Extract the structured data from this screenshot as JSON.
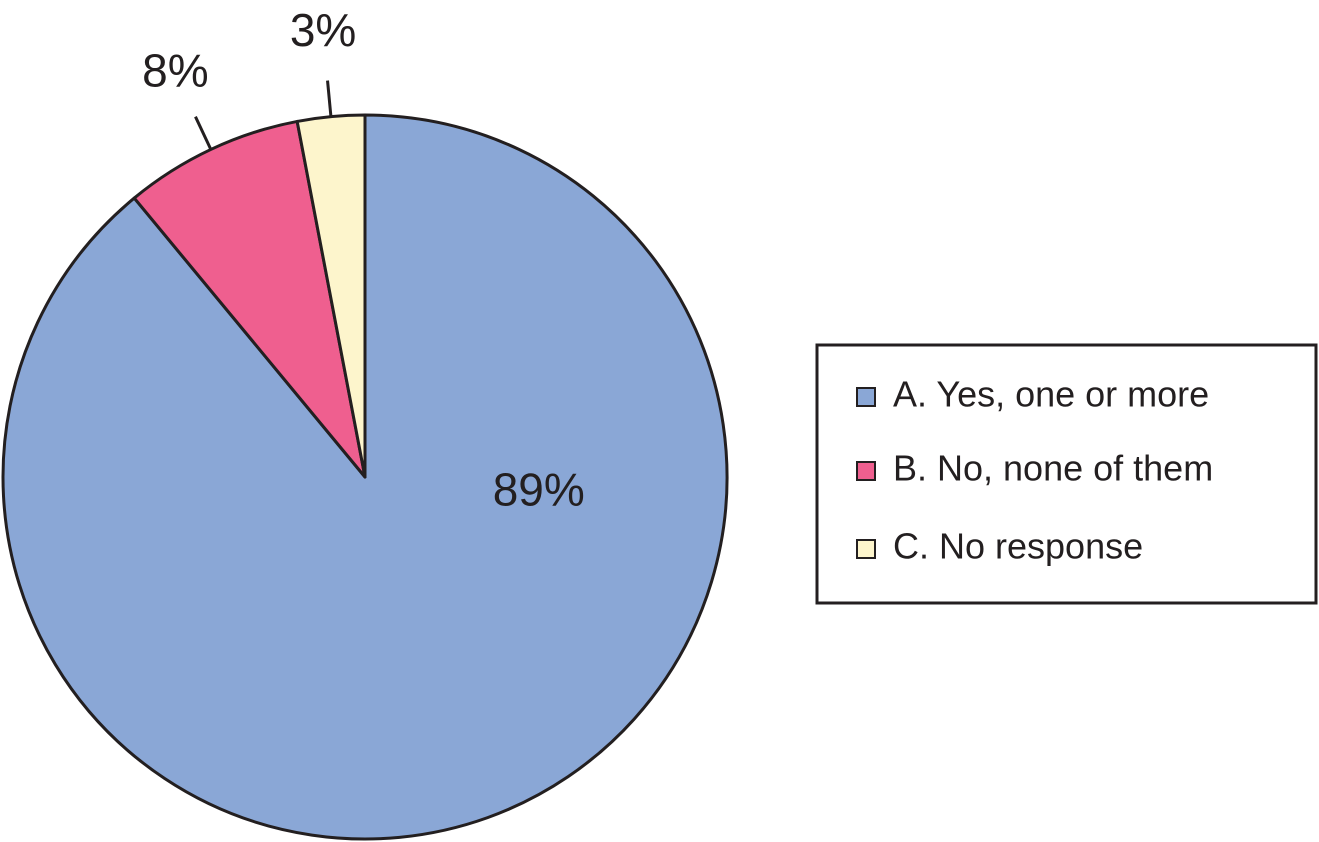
{
  "chart_data": {
    "type": "pie",
    "categories": [
      "A. Yes, one or more",
      "B. No, none of them",
      "C. No response"
    ],
    "values": [
      89,
      8,
      3
    ],
    "value_labels": [
      "89%",
      "8%",
      "3%"
    ],
    "colors": [
      "#8aa7d6",
      "#ef5f8f",
      "#fdf5cc"
    ],
    "legend": "right"
  }
}
